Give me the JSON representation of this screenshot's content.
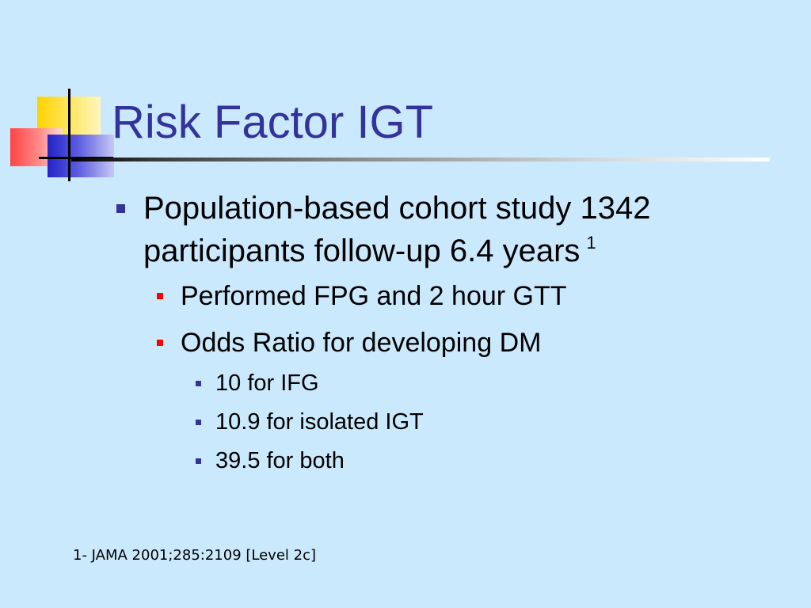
{
  "slide": {
    "title": "Risk Factor IGT",
    "bullet_1": {
      "text": "Population-based cohort study 1342 participants follow-up 6.4 years",
      "superscript": "1"
    },
    "sub_bullets": [
      "Performed FPG and 2 hour GTT",
      "Odds Ratio for developing DM"
    ],
    "sub_sub_bullets": [
      "10 for IFG",
      "10.9 for isolated IGT",
      "39.5 for both"
    ],
    "footnote": "1- JAMA 2001;285:2109 [Level 2c]"
  },
  "colors": {
    "background": "#cbe9fd",
    "title": "#333399",
    "bullet_level1": "#333399",
    "bullet_level2": "#ff0000",
    "bullet_level3": "#333399"
  },
  "icons": {
    "logo": "logo-squares-icon",
    "level1_marker": "square-bullet-icon",
    "level2_marker": "square-bullet-icon",
    "level3_marker": "square-bullet-icon"
  }
}
